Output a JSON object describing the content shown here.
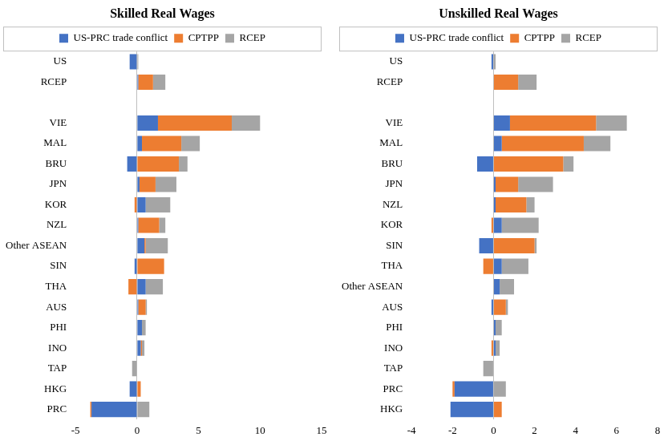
{
  "chart_data": [
    {
      "type": "bar",
      "title": "Skilled Real Wages",
      "orientation": "horizontal",
      "stacked": true,
      "grid": false,
      "legend": "top",
      "categories": [
        "US",
        "RCEP",
        null,
        "VIE",
        "MAL",
        "BRU",
        "JPN",
        "KOR",
        "NZL",
        "Other ASEAN",
        "SIN",
        "THA",
        "AUS",
        "PHI",
        "INO",
        "TAP",
        "HKG",
        "PRC"
      ],
      "series": [
        {
          "name": "US-PRC trade conflict",
          "color": "#4472c4",
          "values": [
            -0.6,
            0.1,
            null,
            1.7,
            0.4,
            -0.8,
            0.2,
            0.7,
            0.1,
            0.6,
            -0.2,
            0.7,
            0.1,
            0.4,
            0.3,
            0,
            -0.6,
            -3.7
          ]
        },
        {
          "name": "CPTPP",
          "color": "#ed7d31",
          "values": [
            0,
            1.2,
            null,
            6.0,
            3.2,
            3.4,
            1.3,
            -0.2,
            1.7,
            0.1,
            2.2,
            -0.7,
            0.6,
            0,
            0.1,
            0,
            0.3,
            -0.1
          ]
        },
        {
          "name": "RCEP",
          "color": "#a5a5a5",
          "values": [
            0.1,
            1.0,
            null,
            2.3,
            1.5,
            0.7,
            1.7,
            2.0,
            0.5,
            1.8,
            0,
            1.4,
            0.1,
            0.3,
            0.2,
            -0.4,
            0,
            1.0
          ]
        }
      ],
      "xlim": [
        -5,
        15
      ],
      "xticks": [
        -5,
        0,
        5,
        10,
        15
      ]
    },
    {
      "type": "bar",
      "title": "Unskilled Real Wages",
      "orientation": "horizontal",
      "stacked": true,
      "grid": false,
      "legend": "top",
      "categories": [
        "US",
        "RCEP",
        null,
        "VIE",
        "MAL",
        "BRU",
        "JPN",
        "NZL",
        "KOR",
        "SIN",
        "THA",
        "Other ASEAN",
        "AUS",
        "PHI",
        "INO",
        "TAP",
        "PRC",
        "HKG"
      ],
      "series": [
        {
          "name": "US-PRC trade conflict",
          "color": "#4472c4",
          "values": [
            -0.1,
            0,
            null,
            0.8,
            0.4,
            -0.8,
            0.1,
            0.1,
            0.4,
            -0.7,
            0.4,
            0.3,
            -0.1,
            0.1,
            0.1,
            0,
            -1.9,
            -2.1
          ]
        },
        {
          "name": "CPTPP",
          "color": "#ed7d31",
          "values": [
            0,
            1.2,
            null,
            4.2,
            4.0,
            3.4,
            1.1,
            1.5,
            -0.1,
            2.0,
            -0.5,
            0,
            0.6,
            0,
            -0.1,
            0,
            -0.1,
            0.4
          ]
        },
        {
          "name": "RCEP",
          "color": "#a5a5a5",
          "values": [
            0.1,
            0.9,
            null,
            1.5,
            1.3,
            0.5,
            1.7,
            0.4,
            1.8,
            0.1,
            1.3,
            0.7,
            0.1,
            0.3,
            0.2,
            -0.5,
            0.6,
            0
          ]
        }
      ],
      "xlim": [
        -4,
        8
      ],
      "xticks": [
        -4,
        -2,
        0,
        2,
        4,
        6,
        8
      ]
    }
  ]
}
